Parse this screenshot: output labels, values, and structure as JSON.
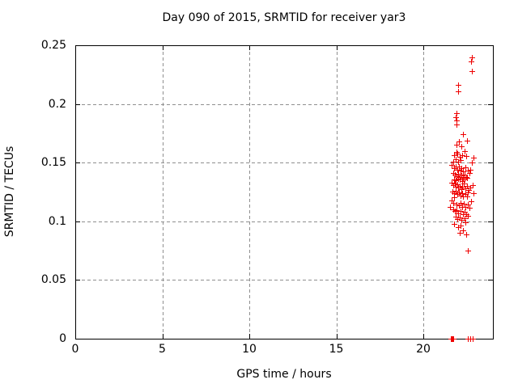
{
  "window": {
    "background": "#ffffff"
  },
  "chart_data": {
    "type": "scatter",
    "title": "Day 090 of 2015, SRMTID for receiver yar3",
    "xlabel": "GPS time / hours",
    "ylabel": "SRMTID / TECUs",
    "xlim": [
      0,
      24
    ],
    "ylim": [
      0,
      0.25
    ],
    "xticks": {
      "values": [
        0,
        5,
        10,
        15,
        20
      ],
      "labels": [
        "0",
        "5",
        "10",
        "15",
        "20"
      ]
    },
    "yticks": {
      "values": [
        0,
        0.05,
        0.1,
        0.15,
        0.2,
        0.25
      ],
      "labels": [
        "0",
        "0.05",
        "0.1",
        "0.15",
        "0.2",
        "0.25"
      ]
    },
    "grid": {
      "enabled": true,
      "color": "#8f8f8f",
      "dash": [
        4,
        3
      ]
    },
    "axis_color": "#000000",
    "text_color": "#000000",
    "legend": "none",
    "series": [
      {
        "name": "SRMTID",
        "marker": "plus",
        "marker_size": 7,
        "color": "#ee0000",
        "points": [
          [
            22.78,
            0.24
          ],
          [
            22.76,
            0.236
          ],
          [
            22.78,
            0.228
          ],
          [
            22.02,
            0.216
          ],
          [
            21.99,
            0.211
          ],
          [
            21.9,
            0.192
          ],
          [
            21.88,
            0.189
          ],
          [
            21.93,
            0.186
          ],
          [
            21.89,
            0.1825
          ],
          [
            22.28,
            0.174
          ],
          [
            22.52,
            0.169
          ],
          [
            22.06,
            0.168
          ],
          [
            21.9,
            0.165
          ],
          [
            22.2,
            0.164
          ],
          [
            22.35,
            0.16
          ],
          [
            21.92,
            0.159
          ],
          [
            21.95,
            0.158
          ],
          [
            22.25,
            0.1565
          ],
          [
            21.75,
            0.156
          ],
          [
            22.45,
            0.1555
          ],
          [
            22.1,
            0.155
          ],
          [
            22.88,
            0.1545
          ],
          [
            21.85,
            0.153
          ],
          [
            22.15,
            0.1525
          ],
          [
            22.0,
            0.151
          ],
          [
            21.7,
            0.1505
          ],
          [
            22.8,
            0.15
          ],
          [
            21.65,
            0.148
          ],
          [
            21.88,
            0.147
          ],
          [
            22.05,
            0.1465
          ],
          [
            22.4,
            0.146
          ],
          [
            21.78,
            0.1455
          ],
          [
            22.2,
            0.145
          ],
          [
            21.95,
            0.144
          ],
          [
            22.72,
            0.144
          ],
          [
            22.12,
            0.1435
          ],
          [
            22.55,
            0.143
          ],
          [
            22.3,
            0.1425
          ],
          [
            22.65,
            0.1415
          ],
          [
            21.7,
            0.141
          ],
          [
            22.0,
            0.1405
          ],
          [
            22.38,
            0.14
          ],
          [
            21.82,
            0.1395
          ],
          [
            22.18,
            0.139
          ],
          [
            21.9,
            0.1385
          ],
          [
            22.48,
            0.138
          ],
          [
            22.08,
            0.1375
          ],
          [
            22.28,
            0.137
          ],
          [
            22.5,
            0.1368
          ],
          [
            21.98,
            0.1365
          ],
          [
            21.75,
            0.136
          ],
          [
            22.35,
            0.1358
          ],
          [
            22.1,
            0.1355
          ],
          [
            21.85,
            0.135
          ],
          [
            22.22,
            0.1345
          ],
          [
            21.62,
            0.133
          ],
          [
            21.8,
            0.1325
          ],
          [
            22.32,
            0.132
          ],
          [
            21.95,
            0.1315
          ],
          [
            22.85,
            0.131
          ],
          [
            21.72,
            0.131
          ],
          [
            22.1,
            0.1305
          ],
          [
            22.52,
            0.13
          ],
          [
            21.88,
            0.1295
          ],
          [
            22.25,
            0.1295
          ],
          [
            22.7,
            0.129
          ],
          [
            22.02,
            0.1285
          ],
          [
            22.42,
            0.128
          ],
          [
            22.18,
            0.1275
          ],
          [
            22.62,
            0.127
          ],
          [
            21.86,
            0.126
          ],
          [
            21.68,
            0.1255
          ],
          [
            22.04,
            0.125
          ],
          [
            22.58,
            0.1245
          ],
          [
            21.78,
            0.124
          ],
          [
            22.22,
            0.124
          ],
          [
            22.9,
            0.124
          ],
          [
            22.4,
            0.1235
          ],
          [
            21.94,
            0.123
          ],
          [
            22.12,
            0.1222
          ],
          [
            22.3,
            0.1215
          ],
          [
            22.5,
            0.121
          ],
          [
            21.75,
            0.1205
          ],
          [
            21.63,
            0.118
          ],
          [
            22.76,
            0.117
          ],
          [
            21.73,
            0.116
          ],
          [
            22.14,
            0.1155
          ],
          [
            22.34,
            0.1148
          ],
          [
            21.9,
            0.1145
          ],
          [
            22.54,
            0.114
          ],
          [
            22.06,
            0.1135
          ],
          [
            22.24,
            0.1125
          ],
          [
            22.44,
            0.112
          ],
          [
            22.64,
            0.1115
          ],
          [
            21.55,
            0.112
          ],
          [
            21.7,
            0.11
          ],
          [
            21.92,
            0.1095
          ],
          [
            22.12,
            0.1088
          ],
          [
            21.8,
            0.1085
          ],
          [
            22.38,
            0.108
          ],
          [
            22.02,
            0.107
          ],
          [
            22.26,
            0.106
          ],
          [
            22.48,
            0.1058
          ],
          [
            22.55,
            0.1045
          ],
          [
            21.85,
            0.104
          ],
          [
            22.08,
            0.1035
          ],
          [
            22.35,
            0.1025
          ],
          [
            21.95,
            0.102
          ],
          [
            22.2,
            0.101
          ],
          [
            22.42,
            0.099
          ],
          [
            21.78,
            0.098
          ],
          [
            22.15,
            0.0965
          ],
          [
            22.0,
            0.095
          ],
          [
            22.3,
            0.092
          ],
          [
            22.1,
            0.09
          ],
          [
            22.48,
            0.0888
          ],
          [
            22.56,
            0.0751
          ],
          [
            21.6,
            0.0
          ],
          [
            21.63,
            0.0
          ],
          [
            21.66,
            0.0
          ],
          [
            21.7,
            0.0
          ],
          [
            21.73,
            0.0
          ],
          [
            22.56,
            0.0
          ],
          [
            22.7,
            0.0
          ],
          [
            22.84,
            0.0
          ]
        ]
      }
    ]
  }
}
